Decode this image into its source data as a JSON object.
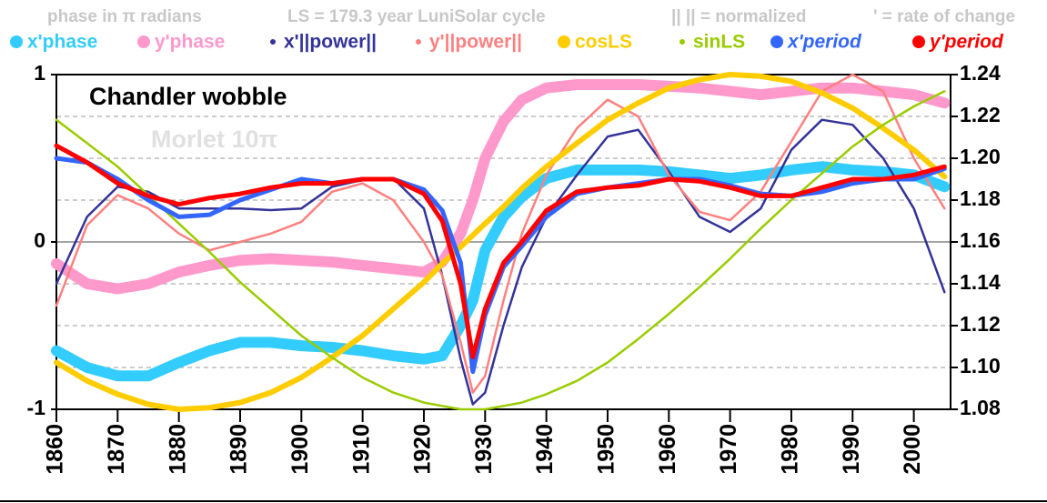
{
  "chart_data": {
    "type": "line",
    "header_notes": [
      "phase in π radians",
      "LS = 179.3 year LuniSolar cycle",
      "|| || = normalized",
      "' = rate of change"
    ],
    "annotations": [
      "Chandler wobble",
      "Morlet 10π"
    ],
    "x": [
      1860,
      1865,
      1870,
      1875,
      1880,
      1885,
      1890,
      1895,
      1900,
      1905,
      1910,
      1915,
      1920,
      1923,
      1926,
      1928,
      1930,
      1933,
      1936,
      1940,
      1945,
      1950,
      1955,
      1960,
      1965,
      1970,
      1975,
      1980,
      1985,
      1990,
      1995,
      2000,
      2005
    ],
    "xlim": [
      1860,
      2006
    ],
    "xticks": [
      1860,
      1870,
      1880,
      1890,
      1900,
      1910,
      1920,
      1930,
      1940,
      1950,
      1960,
      1970,
      1980,
      1990,
      2000
    ],
    "ylim": [
      -1,
      1
    ],
    "yticks": [
      -1,
      0,
      1
    ],
    "y2lim": [
      1.08,
      1.24
    ],
    "y2ticks": [
      1.08,
      {
        "value": 1.1,
        "label": "1.10"
      },
      1.12,
      1.14,
      1.16,
      1.18,
      {
        "value": 1.2,
        "label": "1.20"
      },
      1.22,
      1.24
    ],
    "grid": true,
    "series": [
      {
        "name": "x'phase",
        "color": "#33ccff",
        "values": [
          -0.65,
          -0.75,
          -0.8,
          -0.8,
          -0.72,
          -0.65,
          -0.6,
          -0.6,
          -0.62,
          -0.63,
          -0.65,
          -0.68,
          -0.7,
          -0.68,
          -0.5,
          -0.35,
          -0.05,
          0.15,
          0.27,
          0.38,
          0.43,
          0.43,
          0.43,
          0.42,
          0.4,
          0.38,
          0.4,
          0.43,
          0.45,
          0.43,
          0.42,
          0.4,
          0.33
        ]
      },
      {
        "name": "y'phase",
        "color": "#ff99cc",
        "values": [
          -0.13,
          -0.25,
          -0.28,
          -0.25,
          -0.18,
          -0.14,
          -0.11,
          -0.1,
          -0.11,
          -0.12,
          -0.14,
          -0.16,
          -0.18,
          -0.12,
          0.05,
          0.25,
          0.5,
          0.72,
          0.85,
          0.92,
          0.94,
          0.94,
          0.94,
          0.93,
          0.92,
          0.9,
          0.88,
          0.9,
          0.92,
          0.92,
          0.9,
          0.88,
          0.83
        ]
      },
      {
        "name": "x'||power||",
        "color": "#333399",
        "values": [
          -0.25,
          0.15,
          0.33,
          0.3,
          0.2,
          0.2,
          0.2,
          0.19,
          0.2,
          0.33,
          0.37,
          0.38,
          0.2,
          -0.2,
          -0.7,
          -0.97,
          -0.9,
          -0.5,
          -0.15,
          0.15,
          0.4,
          0.63,
          0.67,
          0.42,
          0.15,
          0.06,
          0.2,
          0.55,
          0.73,
          0.7,
          0.5,
          0.2,
          -0.3
        ]
      },
      {
        "name": "y'||power||",
        "color": "#ff8080",
        "values": [
          -0.38,
          0.1,
          0.28,
          0.2,
          0.05,
          -0.05,
          0.0,
          0.05,
          0.12,
          0.3,
          0.35,
          0.25,
          0.0,
          -0.2,
          -0.6,
          -0.9,
          -0.8,
          -0.35,
          0.05,
          0.4,
          0.68,
          0.85,
          0.75,
          0.4,
          0.18,
          0.13,
          0.3,
          0.6,
          0.9,
          1.0,
          0.9,
          0.5,
          0.2
        ]
      },
      {
        "name": "cosLS",
        "color": "#ffcc00",
        "values": [
          -0.72,
          -0.83,
          -0.91,
          -0.97,
          -1.0,
          -0.99,
          -0.96,
          -0.9,
          -0.81,
          -0.69,
          -0.56,
          -0.4,
          -0.24,
          -0.13,
          -0.03,
          0.04,
          0.11,
          0.21,
          0.32,
          0.45,
          0.59,
          0.73,
          0.83,
          0.92,
          0.97,
          1.0,
          0.99,
          0.96,
          0.89,
          0.8,
          0.68,
          0.55,
          0.39
        ]
      },
      {
        "name": "sinLS",
        "color": "#99cc00",
        "values": [
          0.73,
          0.59,
          0.45,
          0.28,
          0.11,
          -0.06,
          -0.24,
          -0.4,
          -0.56,
          -0.69,
          -0.81,
          -0.9,
          -0.96,
          -0.98,
          -1.0,
          -1.0,
          -1.0,
          -0.98,
          -0.96,
          -0.91,
          -0.83,
          -0.72,
          -0.58,
          -0.43,
          -0.27,
          -0.1,
          0.08,
          0.25,
          0.41,
          0.57,
          0.7,
          0.81,
          0.9
        ]
      },
      {
        "name": "x'period",
        "color": "#3366ff",
        "axis": "y2",
        "values": [
          1.2,
          1.198,
          1.19,
          1.18,
          1.172,
          1.173,
          1.18,
          1.185,
          1.19,
          1.188,
          1.19,
          1.19,
          1.185,
          1.175,
          1.15,
          1.098,
          1.125,
          1.148,
          1.158,
          1.172,
          1.183,
          1.186,
          1.188,
          1.19,
          1.19,
          1.187,
          1.183,
          1.182,
          1.184,
          1.188,
          1.19,
          1.19,
          1.195
        ]
      },
      {
        "name": "y'period",
        "color": "#ff0000",
        "axis": "y2",
        "values": [
          1.206,
          1.198,
          1.188,
          1.182,
          1.178,
          1.181,
          1.183,
          1.186,
          1.188,
          1.188,
          1.19,
          1.19,
          1.183,
          1.17,
          1.14,
          1.105,
          1.128,
          1.15,
          1.16,
          1.175,
          1.184,
          1.186,
          1.187,
          1.19,
          1.189,
          1.186,
          1.182,
          1.182,
          1.186,
          1.19,
          1.19,
          1.192,
          1.196
        ]
      }
    ]
  }
}
